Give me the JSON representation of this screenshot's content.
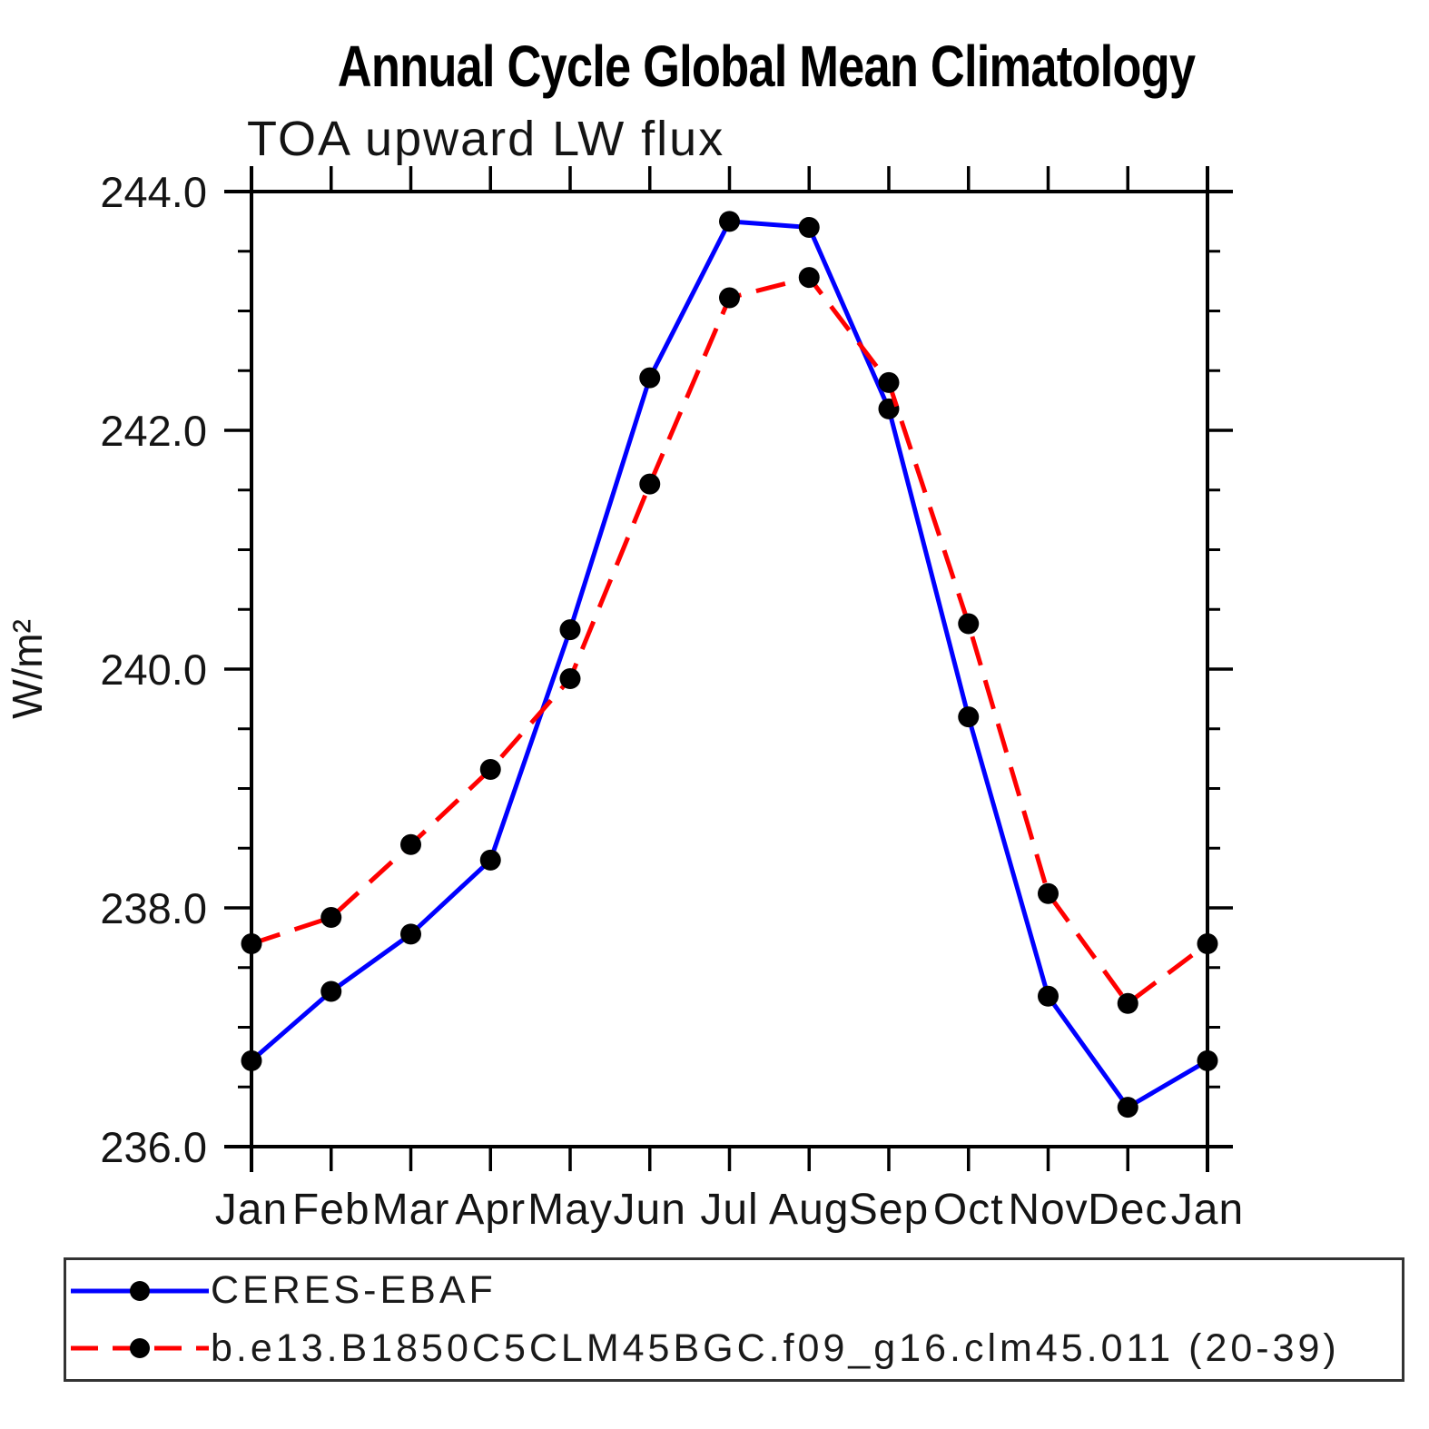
{
  "header": {
    "title": "Annual Cycle Global Mean Climatology",
    "subtitle": "TOA upward LW flux"
  },
  "y_axis": {
    "label": "W/m²",
    "tick_labels": [
      "244.0",
      "242.0",
      "240.0",
      "238.0",
      "236.0"
    ]
  },
  "x_axis": {
    "tick_labels": [
      "Jan",
      "Feb",
      "Mar",
      "Apr",
      "May",
      "Jun",
      "Jul",
      "Aug",
      "Sep",
      "Oct",
      "Nov",
      "Dec",
      "Jan"
    ]
  },
  "colors": {
    "series1": "#0000ff",
    "series2": "#ff0000",
    "marker": "#000000",
    "axis": "#000000"
  },
  "chart_data": {
    "type": "line",
    "title": "Annual Cycle Global Mean Climatology",
    "subtitle": "TOA upward LW flux",
    "xlabel": "",
    "ylabel": "W/m²",
    "ylim": [
      236.0,
      244.0
    ],
    "y_major_tick_step": 2.0,
    "y_minor_tick_step": 0.5,
    "grid": false,
    "legend_position": "bottom",
    "categories": [
      "Jan",
      "Feb",
      "Mar",
      "Apr",
      "May",
      "Jun",
      "Jul",
      "Aug",
      "Sep",
      "Oct",
      "Nov",
      "Dec",
      "Jan"
    ],
    "series": [
      {
        "name": "CERES-EBAF",
        "color": "#0000ff",
        "line_style": "solid",
        "marker": "filled-circle",
        "marker_color": "#000000",
        "values": [
          236.72,
          237.3,
          237.78,
          238.4,
          240.33,
          242.44,
          243.75,
          243.7,
          242.18,
          239.6,
          237.26,
          236.33,
          236.72
        ]
      },
      {
        "name": "b.e13.B1850C5CLM45BGC.f09_g16.clm45.011 (20-39)",
        "color": "#ff0000",
        "line_style": "dashed",
        "marker": "filled-circle",
        "marker_color": "#000000",
        "values": [
          237.7,
          237.92,
          238.53,
          239.16,
          239.92,
          241.55,
          243.11,
          243.28,
          242.4,
          240.38,
          238.12,
          237.2,
          237.7
        ]
      }
    ]
  }
}
